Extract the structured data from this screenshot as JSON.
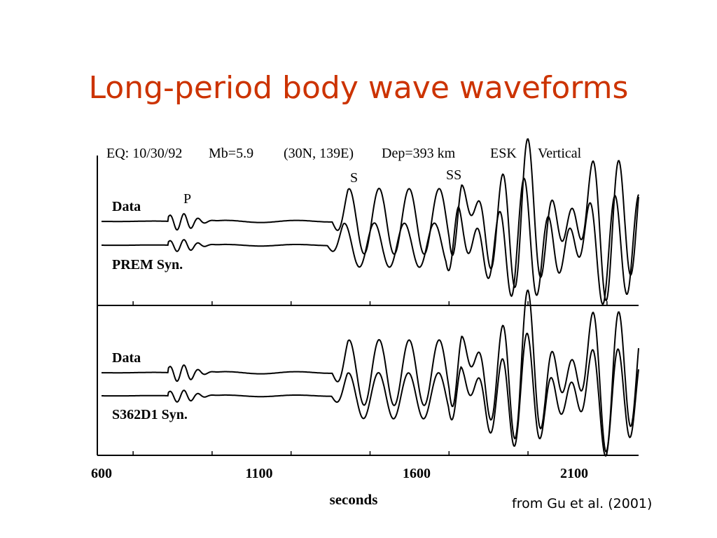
{
  "slide": {
    "title": "Long-period body wave waveforms",
    "citation": "from Gu et al. (2001)"
  },
  "chart_data": {
    "type": "line",
    "header": {
      "eq": "EQ: 10/30/92",
      "mb": "Mb=5.9",
      "location": "(30N, 139E)",
      "depth": "Dep=393 km",
      "station": "ESK",
      "component": "Vertical"
    },
    "phase_labels": [
      "P",
      "S",
      "SS"
    ],
    "xlabel": "seconds",
    "xlim": [
      600,
      2300
    ],
    "xticks": [
      600,
      1100,
      1600,
      2100
    ],
    "panels": [
      {
        "traces": [
          {
            "name": "Data",
            "arrivals": {
              "P": 850,
              "S": 1360,
              "SS": 1720
            },
            "sharp": 0.0
          },
          {
            "name": "PREM Syn.",
            "arrivals": {
              "P": 850,
              "S": 1345,
              "SS": 1710
            },
            "sharp": 0.25
          }
        ]
      },
      {
        "traces": [
          {
            "name": "Data",
            "arrivals": {
              "P": 850,
              "S": 1360,
              "SS": 1720
            },
            "sharp": 0.0
          },
          {
            "name": "S362D1 Syn.",
            "arrivals": {
              "P": 850,
              "S": 1358,
              "SS": 1718
            },
            "sharp": 0.12
          }
        ]
      }
    ]
  }
}
